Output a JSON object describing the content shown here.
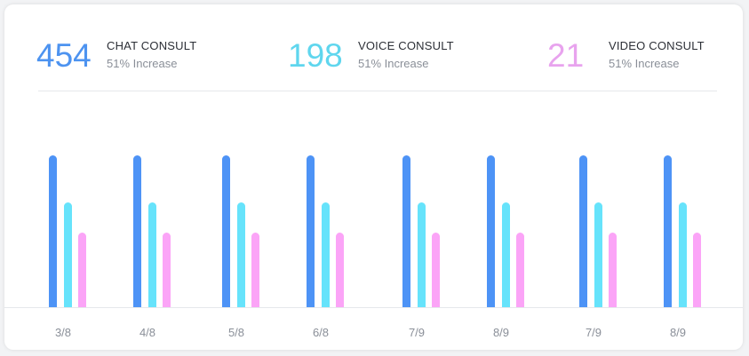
{
  "stats": [
    {
      "value": "454",
      "label": "CHAT CONSULT",
      "sub": "51% Increase",
      "color": "#4d93f0"
    },
    {
      "value": "198",
      "label": "VOICE CONSULT",
      "sub": "51% Increase",
      "color": "#5fd6ee"
    },
    {
      "value": "21",
      "label": "VIDEO CONSULT",
      "sub": "51% Increase",
      "color": "#e8a3ee"
    }
  ],
  "chart_data": {
    "type": "bar",
    "categories": [
      "3/8",
      "4/8",
      "5/8",
      "6/8",
      "7/9",
      "8/9",
      "7/9",
      "8/9"
    ],
    "series": [
      {
        "values": [
          100,
          100,
          100,
          100,
          100,
          100,
          100,
          100
        ],
        "color": "#4d93f6"
      },
      {
        "values": [
          69,
          69,
          69,
          69,
          69,
          69,
          69,
          69
        ],
        "color": "#66e3fb"
      },
      {
        "values": [
          49,
          49,
          49,
          49,
          49,
          49,
          49,
          49
        ],
        "color": "#fba4f7"
      }
    ],
    "ylim": [
      0,
      100
    ],
    "grid": false,
    "legend": "none"
  }
}
